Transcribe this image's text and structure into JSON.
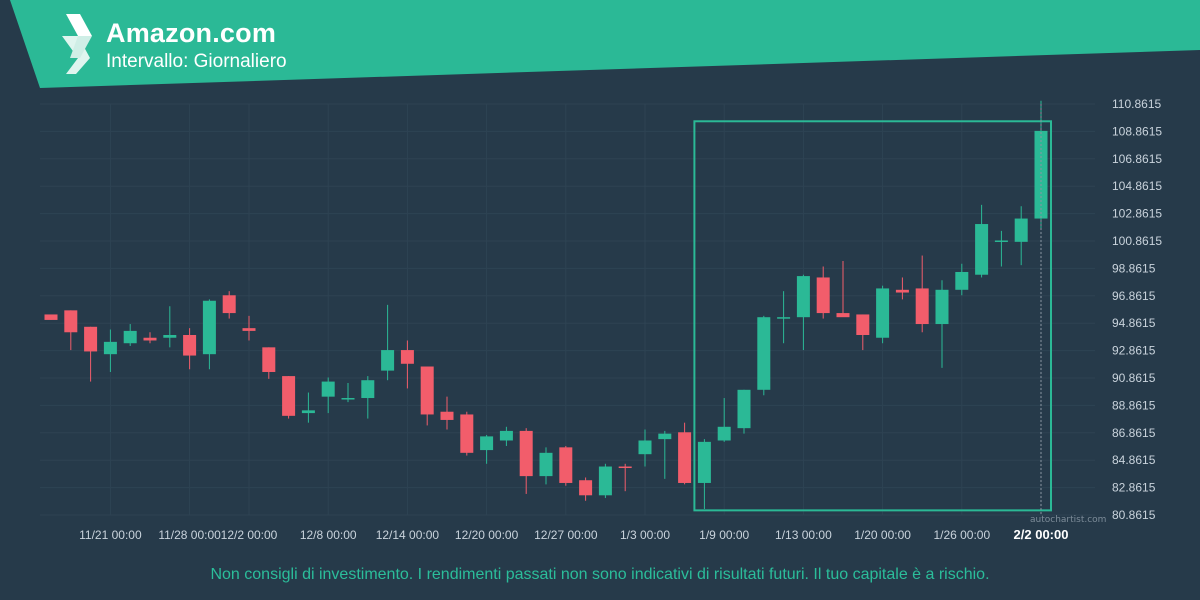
{
  "header": {
    "title": "Amazon.com",
    "subtitle": "Intervallo: Giornaliero"
  },
  "watermark": "autochartist.com",
  "disclaimer": "Non consigli di investimento. I rendimenti passati non sono indicativi di risultati futuri. Il tuo capitale è a rischio.",
  "colors": {
    "up": "#2bb996",
    "down": "#f25d6b",
    "background": "#263a4a",
    "grid": "#2e4353",
    "axis_text": "#c9d3dc",
    "highlight": "#2bb996"
  },
  "chart_data": {
    "type": "candlestick",
    "ylim": [
      80.8615,
      110.8615
    ],
    "y_ticks": [
      "110.8615",
      "108.8615",
      "106.8615",
      "104.8615",
      "102.8615",
      "100.8615",
      "98.8615",
      "96.8615",
      "94.8615",
      "92.8615",
      "90.8615",
      "88.8615",
      "86.8615",
      "84.8615",
      "82.8615",
      "80.8615"
    ],
    "x_tick_labels": [
      {
        "index": 3,
        "label": "11/21 00:00"
      },
      {
        "index": 7,
        "label": "11/28 00:00"
      },
      {
        "index": 10,
        "label": "12/2 00:00"
      },
      {
        "index": 14,
        "label": "12/8 00:00"
      },
      {
        "index": 18,
        "label": "12/14 00:00"
      },
      {
        "index": 22,
        "label": "12/20 00:00"
      },
      {
        "index": 26,
        "label": "12/27 00:00"
      },
      {
        "index": 30,
        "label": "1/3 00:00"
      },
      {
        "index": 34,
        "label": "1/9 00:00"
      },
      {
        "index": 38,
        "label": "1/13 00:00"
      },
      {
        "index": 42,
        "label": "1/20 00:00"
      },
      {
        "index": 46,
        "label": "1/26 00:00"
      },
      {
        "index": 50,
        "label": "2/2 00:00",
        "bold": true
      }
    ],
    "highlight_range": {
      "from_index": 33,
      "to_index": 50,
      "y_low": 81.2,
      "y_high": 109.6
    },
    "candles": [
      {
        "o": 95.5,
        "h": 95.5,
        "l": 95.1,
        "c": 95.1
      },
      {
        "o": 95.8,
        "h": 95.8,
        "l": 92.9,
        "c": 94.2
      },
      {
        "o": 94.6,
        "h": 94.6,
        "l": 90.6,
        "c": 92.8
      },
      {
        "o": 92.6,
        "h": 94.4,
        "l": 91.3,
        "c": 93.5
      },
      {
        "o": 93.4,
        "h": 94.8,
        "l": 93.2,
        "c": 94.3
      },
      {
        "o": 93.8,
        "h": 94.2,
        "l": 93.4,
        "c": 93.6
      },
      {
        "o": 93.8,
        "h": 96.1,
        "l": 93.1,
        "c": 94.0
      },
      {
        "o": 94.0,
        "h": 94.5,
        "l": 91.5,
        "c": 92.5
      },
      {
        "o": 92.6,
        "h": 96.6,
        "l": 91.5,
        "c": 96.5
      },
      {
        "o": 96.9,
        "h": 97.2,
        "l": 95.2,
        "c": 95.6
      },
      {
        "o": 94.5,
        "h": 95.4,
        "l": 93.6,
        "c": 94.3
      },
      {
        "o": 93.1,
        "h": 93.1,
        "l": 90.8,
        "c": 91.3
      },
      {
        "o": 91.0,
        "h": 91.0,
        "l": 87.9,
        "c": 88.1
      },
      {
        "o": 88.3,
        "h": 89.8,
        "l": 87.6,
        "c": 88.5
      },
      {
        "o": 89.5,
        "h": 90.9,
        "l": 88.3,
        "c": 90.6
      },
      {
        "o": 89.3,
        "h": 90.5,
        "l": 89.1,
        "c": 89.4
      },
      {
        "o": 89.4,
        "h": 91.0,
        "l": 87.9,
        "c": 90.7
      },
      {
        "o": 91.4,
        "h": 96.2,
        "l": 90.7,
        "c": 92.9
      },
      {
        "o": 92.9,
        "h": 93.6,
        "l": 90.1,
        "c": 91.9
      },
      {
        "o": 91.7,
        "h": 91.7,
        "l": 87.4,
        "c": 88.2
      },
      {
        "o": 88.4,
        "h": 89.5,
        "l": 87.1,
        "c": 87.8
      },
      {
        "o": 88.2,
        "h": 88.4,
        "l": 85.2,
        "c": 85.4
      },
      {
        "o": 85.6,
        "h": 86.7,
        "l": 84.6,
        "c": 86.6
      },
      {
        "o": 86.3,
        "h": 87.3,
        "l": 85.9,
        "c": 87.0
      },
      {
        "o": 87.0,
        "h": 87.2,
        "l": 82.4,
        "c": 83.7
      },
      {
        "o": 83.7,
        "h": 85.8,
        "l": 83.1,
        "c": 85.4
      },
      {
        "o": 85.8,
        "h": 85.9,
        "l": 83.0,
        "c": 83.2
      },
      {
        "o": 83.4,
        "h": 83.6,
        "l": 81.9,
        "c": 82.3
      },
      {
        "o": 82.3,
        "h": 84.6,
        "l": 82.1,
        "c": 84.4
      },
      {
        "o": 84.4,
        "h": 84.6,
        "l": 82.6,
        "c": 84.3
      },
      {
        "o": 85.3,
        "h": 87.1,
        "l": 84.4,
        "c": 86.3
      },
      {
        "o": 86.4,
        "h": 87.0,
        "l": 83.5,
        "c": 86.8
      },
      {
        "o": 86.9,
        "h": 87.6,
        "l": 83.1,
        "c": 83.2
      },
      {
        "o": 83.2,
        "h": 86.4,
        "l": 81.3,
        "c": 86.2
      },
      {
        "o": 86.3,
        "h": 89.4,
        "l": 86.2,
        "c": 87.3
      },
      {
        "o": 87.2,
        "h": 90.0,
        "l": 86.8,
        "c": 90.0
      },
      {
        "o": 90.0,
        "h": 95.4,
        "l": 89.6,
        "c": 95.3
      },
      {
        "o": 95.3,
        "h": 97.2,
        "l": 93.4,
        "c": 95.3
      },
      {
        "o": 95.3,
        "h": 98.4,
        "l": 92.9,
        "c": 98.3
      },
      {
        "o": 98.2,
        "h": 99.0,
        "l": 95.2,
        "c": 95.6
      },
      {
        "o": 95.6,
        "h": 99.4,
        "l": 95.5,
        "c": 95.3
      },
      {
        "o": 95.5,
        "h": 95.5,
        "l": 92.9,
        "c": 94.0
      },
      {
        "o": 93.8,
        "h": 97.6,
        "l": 93.4,
        "c": 97.4
      },
      {
        "o": 97.3,
        "h": 98.2,
        "l": 96.6,
        "c": 97.1
      },
      {
        "o": 97.4,
        "h": 99.8,
        "l": 94.2,
        "c": 94.8
      },
      {
        "o": 94.8,
        "h": 98.0,
        "l": 91.6,
        "c": 97.3
      },
      {
        "o": 97.3,
        "h": 99.2,
        "l": 96.9,
        "c": 98.6
      },
      {
        "o": 98.4,
        "h": 103.5,
        "l": 98.2,
        "c": 102.1
      },
      {
        "o": 100.8,
        "h": 101.6,
        "l": 99.0,
        "c": 100.9
      },
      {
        "o": 100.8,
        "h": 103.4,
        "l": 99.1,
        "c": 102.5
      },
      {
        "o": 102.5,
        "h": 111.1,
        "l": 101.7,
        "c": 108.9
      }
    ]
  }
}
